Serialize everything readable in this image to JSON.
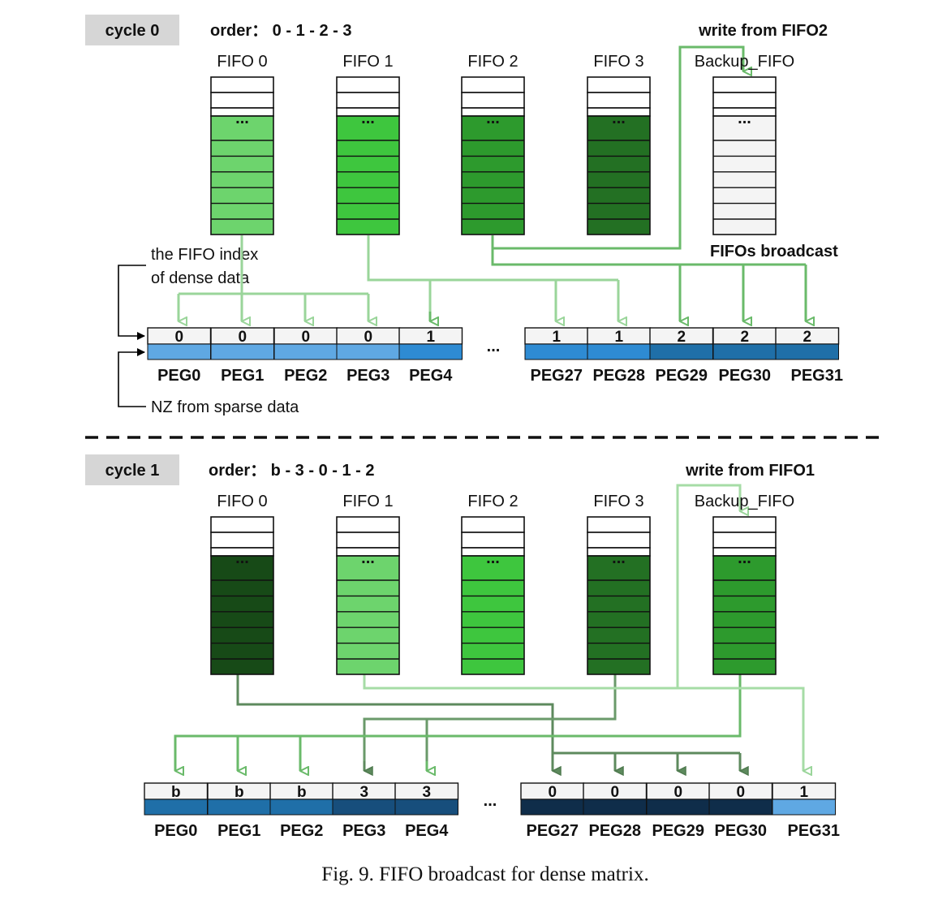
{
  "caption": "Fig. 9.  FIFO broadcast for dense matrix.",
  "annotations": {
    "fifo_index": [
      "the FIFO index",
      "of dense data"
    ],
    "nz_sparse": "NZ from sparse data",
    "fifos_broadcast": "FIFOs broadcast",
    "ellipsis": "..."
  },
  "colors": {
    "green_level_0": "#6dd46d",
    "green_level_1": "#3ec63e",
    "green_level_2": "#2d9a2d",
    "green_level_3": "#237023",
    "green_level_4": "#174a17",
    "backup_empty": "#f4f4f4",
    "arrow_light": "#9ad59a",
    "arrow_mid": "#6aba6a",
    "arrow_dark": "#5d8a5d",
    "peg_light": "#5fa8e3",
    "peg_mid": "#2e8bd3",
    "peg_dark": "#1f6fa8",
    "peg_darker": "#174e7c",
    "peg_darkest": "#0f2d4a",
    "cycle_tag_bg": "#d6d6d6"
  },
  "panels": [
    {
      "cycle_label": "cycle 0",
      "order_label": "order： 0 - 1 - 2 - 3",
      "write_label": "write from FIFO2",
      "fifos": [
        {
          "name": "FIFO 0",
          "fill": "green_level_0"
        },
        {
          "name": "FIFO 1",
          "fill": "green_level_1"
        },
        {
          "name": "FIFO 2",
          "fill": "green_level_2"
        },
        {
          "name": "FIFO 3",
          "fill": "green_level_3"
        },
        {
          "name": "Backup_FIFO",
          "fill": "backup_empty"
        }
      ],
      "pegs_left": [
        {
          "label": "PEG0",
          "index": "0",
          "color": "peg_light"
        },
        {
          "label": "PEG1",
          "index": "0",
          "color": "peg_light"
        },
        {
          "label": "PEG2",
          "index": "0",
          "color": "peg_light"
        },
        {
          "label": "PEG3",
          "index": "0",
          "color": "peg_light"
        },
        {
          "label": "PEG4",
          "index": "1",
          "color": "peg_mid"
        }
      ],
      "pegs_right": [
        {
          "label": "PEG27",
          "index": "1",
          "color": "peg_mid"
        },
        {
          "label": "PEG28",
          "index": "1",
          "color": "peg_mid"
        },
        {
          "label": "PEG29",
          "index": "2",
          "color": "peg_dark"
        },
        {
          "label": "PEG30",
          "index": "2",
          "color": "peg_dark"
        },
        {
          "label": "PEG31",
          "index": "2",
          "color": "peg_dark"
        }
      ]
    },
    {
      "cycle_label": "cycle 1",
      "order_label": "order： b - 3 - 0 - 1 - 2",
      "write_label": "write from FIFO1",
      "fifos": [
        {
          "name": "FIFO 0",
          "fill": "green_level_4"
        },
        {
          "name": "FIFO 1",
          "fill": "green_level_0"
        },
        {
          "name": "FIFO 2",
          "fill": "green_level_1"
        },
        {
          "name": "FIFO 3",
          "fill": "green_level_3"
        },
        {
          "name": "Backup_FIFO",
          "fill": "green_level_2"
        }
      ],
      "pegs_left": [
        {
          "label": "PEG0",
          "index": "b",
          "color": "peg_dark"
        },
        {
          "label": "PEG1",
          "index": "b",
          "color": "peg_dark"
        },
        {
          "label": "PEG2",
          "index": "b",
          "color": "peg_dark"
        },
        {
          "label": "PEG3",
          "index": "3",
          "color": "peg_darker"
        },
        {
          "label": "PEG4",
          "index": "3",
          "color": "peg_darker"
        }
      ],
      "pegs_right": [
        {
          "label": "PEG27",
          "index": "0",
          "color": "peg_darkest"
        },
        {
          "label": "PEG28",
          "index": "0",
          "color": "peg_darkest"
        },
        {
          "label": "PEG29",
          "index": "0",
          "color": "peg_darkest"
        },
        {
          "label": "PEG30",
          "index": "0",
          "color": "peg_darkest"
        },
        {
          "label": "PEG31",
          "index": "1",
          "color": "peg_light"
        }
      ]
    }
  ]
}
